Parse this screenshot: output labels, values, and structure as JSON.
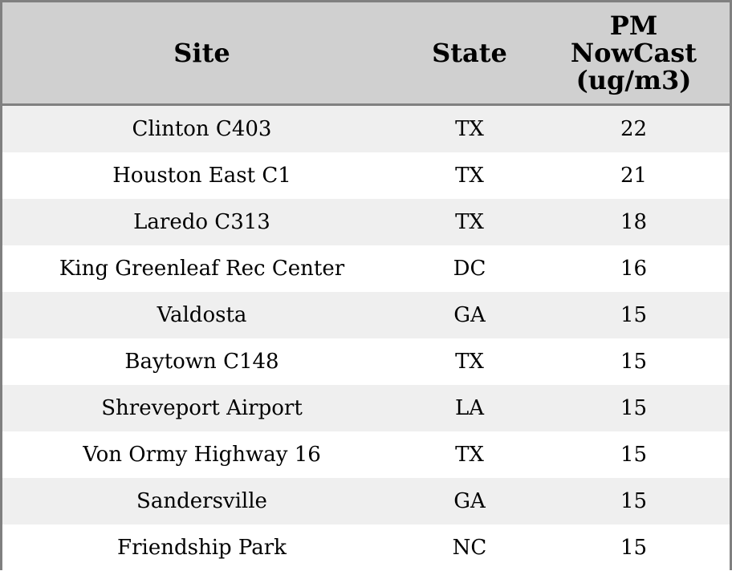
{
  "table": {
    "header": [
      "Site",
      "State",
      "PM NowCast (ug/m3)"
    ],
    "rows": [
      [
        "Clinton C403",
        "TX",
        22
      ],
      [
        "Houston East C1",
        "TX",
        21
      ],
      [
        "Laredo C313",
        "TX",
        18
      ],
      [
        "King Greenleaf Rec Center",
        "DC",
        16
      ],
      [
        "Valdosta",
        "GA",
        15
      ],
      [
        "Baytown C148",
        "TX",
        15
      ],
      [
        "Shreveport Airport",
        "LA",
        15
      ],
      [
        "Von Ormy Highway 16",
        "TX",
        15
      ],
      [
        "Sandersville",
        "GA",
        15
      ],
      [
        "Friendship Park",
        "NC",
        15
      ]
    ]
  }
}
